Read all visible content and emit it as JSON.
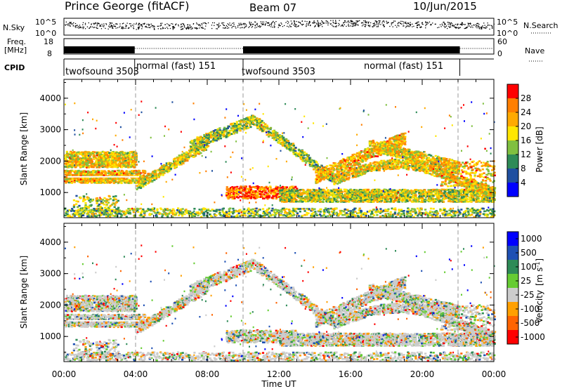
{
  "header": {
    "title": "Prince George (fitACF)",
    "beam": "Beam 07",
    "date": "10/Jun/2015"
  },
  "strips": {
    "nsky_label": "N.Sky",
    "nsky_ticks": [
      "10^5",
      "10^0"
    ],
    "nsky_right_ticks": [
      "10^5",
      "10^0"
    ],
    "nsearch_label": "N.Search",
    "freq_label_1": "Freq.",
    "freq_label_2": "[MHz]",
    "freq_ticks": [
      "18",
      "8"
    ],
    "nave_ticks": [
      "60",
      "0"
    ],
    "nave_label": "Nave",
    "cpid_label": "CPID",
    "cpid_segments": [
      {
        "label": "twofsound 3503",
        "start": 0.0,
        "end": 3.95
      },
      {
        "label": "normal (fast) 151",
        "start": 3.95,
        "end": 10.0
      },
      {
        "label": "twofsound 3503",
        "start": 10.0,
        "end": 22.1
      },
      {
        "label": "normal (fast) 151",
        "start": 13.9,
        "end": 22.1
      }
    ],
    "freq_high_intervals": [
      [
        0.0,
        3.95
      ],
      [
        10.0,
        22.1
      ]
    ]
  },
  "chart_data": [
    {
      "type": "heatmap",
      "name": "power",
      "ylabel": "Slant Range [km]",
      "yticks": [
        "4000",
        "3000",
        "2000",
        "1000"
      ],
      "ylim": [
        200,
        4600
      ],
      "xlim": [
        0,
        24
      ],
      "colorbar": {
        "label": "Power [dB]",
        "ticks": [
          "28",
          "24",
          "20",
          "16",
          "12",
          "8",
          "4"
        ],
        "colors": [
          "#ff0000",
          "#ff7f00",
          "#ffaa00",
          "#ffe600",
          "#80c040",
          "#2e8b57",
          "#1f4fa0",
          "#0000ff"
        ]
      }
    },
    {
      "type": "heatmap",
      "name": "velocity",
      "ylabel": "Slant Range [km]",
      "yticks": [
        "4000",
        "3000",
        "2000",
        "1000"
      ],
      "ylim": [
        200,
        4600
      ],
      "xlim": [
        0,
        24
      ],
      "xlabel": "Time UT",
      "xticks": [
        "00:00",
        "04:00",
        "08:00",
        "12:00",
        "16:00",
        "20:00",
        "00:00"
      ],
      "colorbar": {
        "label": "Velocity",
        "unit": "[m s",
        "unit_sup": "-1",
        "unit_close": "]",
        "ticks": [
          "1000",
          "500",
          "100",
          "25",
          "-25",
          "-100",
          "-500",
          "-1000"
        ],
        "colors": [
          "#0000ff",
          "#1e50b4",
          "#2e8b57",
          "#66cc33",
          "#cccccc",
          "#ffa000",
          "#ff6400",
          "#ff0000"
        ]
      }
    }
  ]
}
